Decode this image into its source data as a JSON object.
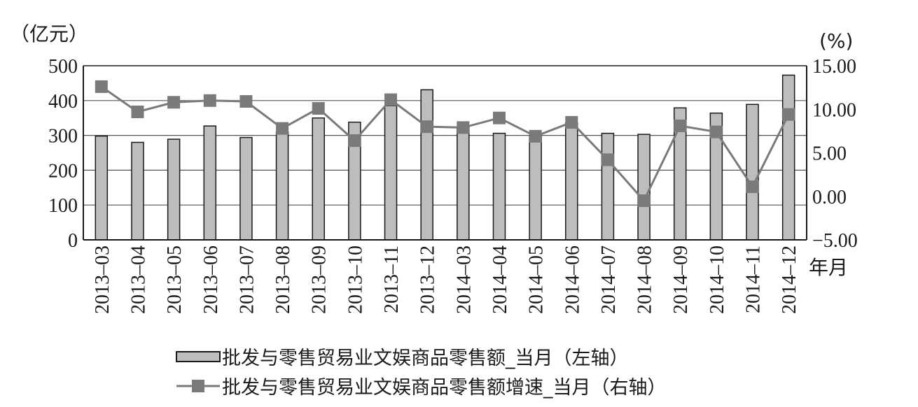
{
  "chart_data": {
    "type": "bar+line",
    "left_axis_unit": "（亿元）",
    "right_axis_unit": "(%)",
    "x_axis_unit": "年月",
    "left_ylim": [
      0,
      500
    ],
    "left_ticks": [
      "0",
      "100",
      "200",
      "300",
      "400",
      "500"
    ],
    "right_ylim": [
      -5,
      15
    ],
    "right_ticks": [
      "−5.00",
      "0.00",
      "5.00",
      "10.00",
      "15.00"
    ],
    "grid": true,
    "categories": [
      "2013–03",
      "2013–04",
      "2013–05",
      "2013–06",
      "2013–07",
      "2013–08",
      "2013–09",
      "2013–10",
      "2013–11",
      "2013–12",
      "2014–03",
      "2014–04",
      "2014–05",
      "2014–06",
      "2014–07",
      "2014–08",
      "2014–09",
      "2014–10",
      "2014–11",
      "2014–12"
    ],
    "series": [
      {
        "name": "批发与零售贸易业文娱商品零售额_当月（左轴）",
        "type": "bar",
        "axis": "left",
        "color": "#bdbdbd",
        "values": [
          298,
          280,
          289,
          327,
          294,
          310,
          350,
          338,
          385,
          431,
          323,
          306,
          300,
          336,
          306,
          303,
          379,
          364,
          389,
          473
        ]
      },
      {
        "name": "批发与零售贸易业文娱商品零售额增速_当月（右轴）",
        "type": "line",
        "axis": "right",
        "color": "#7a7a7a",
        "values": [
          12.6,
          9.7,
          10.8,
          11.0,
          10.9,
          7.8,
          10.1,
          6.4,
          11.1,
          8.0,
          7.9,
          9.0,
          6.9,
          8.5,
          4.2,
          -0.5,
          8.1,
          7.4,
          1.1,
          9.4
        ]
      }
    ],
    "legend_position": "bottom-center"
  }
}
